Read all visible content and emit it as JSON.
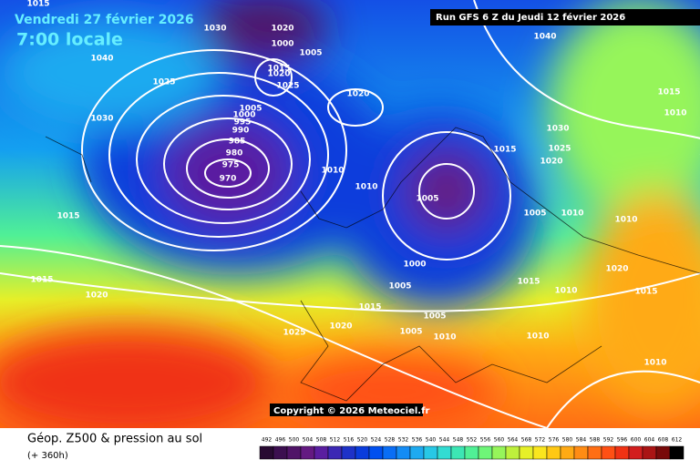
{
  "header": {
    "date": "Vendredi 27 février 2026",
    "time": "7:00 locale",
    "run": "Run GFS 6 Z du Jeudi 12 février 2026"
  },
  "copyright": "Copyright © 2026 Meteociel.fr",
  "footer": {
    "title": "Géop. Z500 & pression au sol",
    "lead": "(+ 360h)"
  },
  "isobar_labels": [
    1015,
    1030,
    1020,
    1000,
    1005,
    1040,
    1025,
    1015,
    1020,
    1025,
    1030,
    1005,
    1000,
    995,
    990,
    985,
    980,
    975,
    970,
    1020,
    1040,
    1030,
    1025,
    1020,
    1015,
    1010,
    1010,
    1005,
    1005,
    1010,
    1010,
    1015,
    1010,
    1015,
    1015,
    1020,
    1025,
    1020,
    1015,
    1005,
    1000,
    1005,
    1005,
    1010,
    1015,
    1010,
    1020,
    1015,
    1010,
    1010
  ],
  "legend": {
    "ticks": [
      492,
      496,
      500,
      504,
      508,
      512,
      516,
      520,
      524,
      528,
      532,
      536,
      540,
      544,
      548,
      552,
      556,
      560,
      564,
      568,
      572,
      576,
      580,
      584,
      588,
      592,
      596,
      600,
      604,
      608,
      612
    ],
    "colors": [
      "#280a32",
      "#3c0f50",
      "#501468",
      "#641a82",
      "#5a1ea0",
      "#3c28b4",
      "#1e32c8",
      "#0a3cdc",
      "#0050f0",
      "#0a6ef5",
      "#148cf5",
      "#1eaaf0",
      "#28c8e6",
      "#32dcd2",
      "#3ce6b4",
      "#50f096",
      "#6ef578",
      "#96f55a",
      "#bef03c",
      "#e6f028",
      "#fae61e",
      "#ffc814",
      "#ffaa14",
      "#ff8c14",
      "#ff6e14",
      "#ff5014",
      "#f03214",
      "#d21e1e",
      "#aa1414",
      "#780a0a",
      "#000000"
    ]
  }
}
